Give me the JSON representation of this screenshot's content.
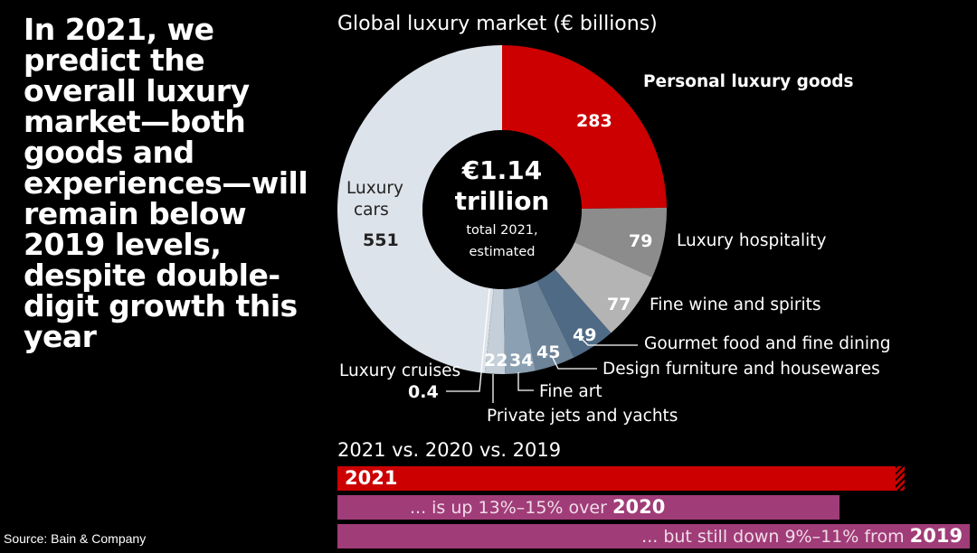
{
  "headline": "In 2021, we predict the overall luxury market—both goods and experiences—will remain below 2019 levels, despite double-digit growth this year",
  "source": "Source: Bain & Company",
  "chart_data": [
    {
      "type": "pie",
      "title": "Global luxury market (€ billions)",
      "center_label": {
        "value": "€1.14 trillion",
        "line1": "€1.14",
        "line2": "trillion",
        "note1": "total 2021,",
        "note2": "estimated"
      },
      "slices": [
        {
          "label": "Personal luxury goods",
          "value": 283,
          "value_label": "283",
          "color": "#cc0000"
        },
        {
          "label": "Luxury hospitality",
          "value": 79,
          "value_label": "79",
          "color": "#8c8c8c"
        },
        {
          "label": "Fine wine and spirits",
          "value": 77,
          "value_label": "77",
          "color": "#b4b4b4"
        },
        {
          "label": "Gourmet food and fine dining",
          "value": 49,
          "value_label": "49",
          "color": "#4f6a84"
        },
        {
          "label": "Design furniture and housewares",
          "value": 45,
          "value_label": "45",
          "color": "#6c8398"
        },
        {
          "label": "Fine art",
          "value": 34,
          "value_label": "34",
          "color": "#8ba0b2"
        },
        {
          "label": "Private jets and yachts",
          "value": 22,
          "value_label": "22",
          "color": "#c4cfd9"
        },
        {
          "label": "Luxury cruises",
          "value": 0.4,
          "value_label": "0.4",
          "color": "#ffffff"
        },
        {
          "label": "Luxury cars",
          "label1": "Luxury",
          "label2": "cars",
          "value": 551,
          "value_label": "551",
          "color": "#dde3ea"
        }
      ]
    },
    {
      "type": "bar",
      "title": "2021 vs. 2020 vs. 2019",
      "bars": [
        {
          "label": "2021",
          "relative_size": 1.0,
          "color": "#cc0000"
        },
        {
          "label_prefix": "... is up 13%–15% over",
          "label_year": "2020",
          "relative_size": 0.885,
          "color": "#a03c78"
        },
        {
          "label_prefix": "... but still down 9%–11% from",
          "label_year": "2019",
          "relative_size": 1.115,
          "color": "#a03c78"
        }
      ]
    }
  ]
}
